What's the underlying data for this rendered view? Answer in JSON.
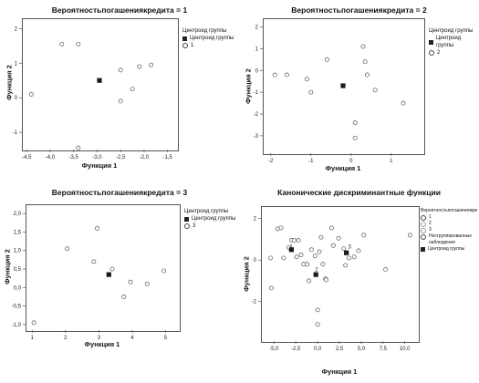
{
  "chart_data": [
    {
      "type": "scatter",
      "title": "Вероятностьпогашениякредита = 1",
      "xlabel": "Функция 1",
      "ylabel": "Функция 2",
      "xlim": [
        -4.6,
        -1.3
      ],
      "ylim": [
        -1.5,
        2.3
      ],
      "xticks": [
        -4.5,
        -4.0,
        -3.5,
        -3.0,
        -2.5,
        -2.0,
        -1.5
      ],
      "xtick_labels": [
        "-4,5",
        "-4,0",
        "-3,5",
        "-3,0",
        "-2,5",
        "-2,0",
        "-1,5"
      ],
      "yticks": [
        -1,
        0,
        1,
        2
      ],
      "ytick_labels": [
        "-1",
        "0",
        "1",
        "2"
      ],
      "legend": {
        "title": "Центроид группы",
        "entries": [
          {
            "label": "Центроид группы",
            "marker": "square"
          },
          {
            "label": "1",
            "marker": "circle"
          }
        ]
      },
      "series": [
        {
          "marker": "circle",
          "points": [
            [
              -4.4,
              0.1
            ],
            [
              -3.75,
              1.55
            ],
            [
              -3.4,
              1.55
            ],
            [
              -3.4,
              -1.45
            ],
            [
              -2.5,
              0.8
            ],
            [
              -2.5,
              -0.1
            ],
            [
              -2.25,
              0.25
            ],
            [
              -2.1,
              0.9
            ],
            [
              -1.85,
              0.95
            ]
          ]
        },
        {
          "name": "Центроид группы",
          "marker": "square",
          "points": [
            [
              -2.95,
              0.5
            ]
          ]
        }
      ]
    },
    {
      "type": "scatter",
      "title": "Вероятностьпогашениякредита = 2",
      "xlabel": "Функция 1",
      "ylabel": "Функция 2",
      "xlim": [
        -2.2,
        1.8
      ],
      "ylim": [
        -3.8,
        2.4
      ],
      "xticks": [
        -2,
        -1,
        0,
        1
      ],
      "xtick_labels": [
        "-2",
        "-1",
        "0",
        "1"
      ],
      "yticks": [
        -3,
        -2,
        -1,
        0,
        1,
        2
      ],
      "ytick_labels": [
        "-3",
        "-2",
        "-1",
        "0",
        "1",
        "2"
      ],
      "legend": {
        "title": "Центроид группы",
        "entries": [
          {
            "label": "Центроид группы",
            "marker": "square"
          },
          {
            "label": "2",
            "marker": "circle"
          }
        ]
      },
      "series": [
        {
          "marker": "circle",
          "points": [
            [
              -1.9,
              -0.2
            ],
            [
              -1.6,
              -0.2
            ],
            [
              -1.1,
              -0.4
            ],
            [
              -1.0,
              -1.0
            ],
            [
              -0.6,
              0.5
            ],
            [
              0.1,
              -2.4
            ],
            [
              0.1,
              -3.1
            ],
            [
              0.3,
              1.1
            ],
            [
              0.35,
              0.4
            ],
            [
              0.4,
              -0.2
            ],
            [
              0.6,
              -0.9
            ],
            [
              1.3,
              -1.5
            ]
          ]
        },
        {
          "name": "Центроид группы",
          "marker": "square",
          "points": [
            [
              -0.2,
              -0.7
            ]
          ]
        }
      ]
    },
    {
      "type": "scatter",
      "title": "Вероятностьпогашениякредита = 3",
      "xlabel": "Функция 1",
      "ylabel": "Функция 2",
      "xlim": [
        0.8,
        5.4
      ],
      "ylim": [
        -1.15,
        2.25
      ],
      "xticks": [
        1,
        2,
        3,
        4,
        5
      ],
      "xtick_labels": [
        "1",
        "2",
        "3",
        "4",
        "5"
      ],
      "yticks": [
        -1.0,
        -0.5,
        0.0,
        0.5,
        1.0,
        1.5,
        2.0
      ],
      "ytick_labels": [
        "-1,0",
        "-0,5",
        "0,0",
        "0,5",
        "1,0",
        "1,5",
        "2,0"
      ],
      "legend": {
        "title": "Центроид группы",
        "entries": [
          {
            "label": "Центроид группы",
            "marker": "square"
          },
          {
            "label": "3",
            "marker": "circle"
          }
        ]
      },
      "series": [
        {
          "marker": "circle",
          "points": [
            [
              1.05,
              -0.95
            ],
            [
              2.05,
              1.05
            ],
            [
              2.85,
              0.7
            ],
            [
              2.95,
              1.6
            ],
            [
              3.4,
              0.5
            ],
            [
              3.75,
              -0.25
            ],
            [
              3.95,
              0.15
            ],
            [
              4.45,
              0.1
            ],
            [
              4.95,
              0.45
            ]
          ]
        },
        {
          "name": "Центроид группы",
          "marker": "square",
          "points": [
            [
              3.3,
              0.35
            ]
          ]
        }
      ]
    },
    {
      "type": "scatter",
      "title": "Канонические дискриминантные функции",
      "xlabel": "Функция 1",
      "ylabel": "Функция 2",
      "xlim": [
        -6.5,
        11.5
      ],
      "ylim": [
        -3.9,
        2.6
      ],
      "xticks": [
        -5.0,
        -2.5,
        0.0,
        2.5,
        5.0,
        7.5,
        10.0
      ],
      "xtick_labels": [
        "-5,0",
        "-2,5",
        "0,0",
        "2,5",
        "5,0",
        "7,5",
        "10,0"
      ],
      "yticks": [
        -2,
        0,
        2
      ],
      "ytick_labels": [
        "-2",
        "0",
        "2"
      ],
      "legend": {
        "title": "Вероятностьпогашениякредита",
        "entries": [
          {
            "label": "1",
            "marker": "circle"
          },
          {
            "label": "2",
            "marker": "circle"
          },
          {
            "label": "3",
            "marker": "circle"
          },
          {
            "label": "Несгруппированные наблюдения",
            "marker": "circle"
          },
          {
            "label": "Центроид группы",
            "marker": "square"
          }
        ]
      },
      "centroid_labels": [
        {
          "text": "1",
          "x": -3.2,
          "y": 0.55
        },
        {
          "text": "2",
          "x": -0.3,
          "y": -0.55
        },
        {
          "text": "3",
          "x": 3.5,
          "y": 0.55
        }
      ],
      "series": [
        {
          "marker": "circle",
          "points": [
            [
              -4.6,
              1.5
            ],
            [
              -4.2,
              1.55
            ],
            [
              -3.9,
              0.1
            ],
            [
              -3.3,
              0.6
            ],
            [
              -3.0,
              0.95
            ],
            [
              -2.7,
              0.95
            ],
            [
              -2.4,
              0.15
            ],
            [
              -2.2,
              0.95
            ],
            [
              -1.9,
              0.25
            ],
            [
              -1.6,
              -0.2
            ],
            [
              -1.2,
              -0.2
            ],
            [
              -1.0,
              -1.0
            ],
            [
              -0.7,
              0.5
            ],
            [
              -0.3,
              0.2
            ],
            [
              0.0,
              -2.4
            ],
            [
              0.0,
              -3.1
            ],
            [
              0.2,
              0.4
            ],
            [
              0.4,
              1.1
            ],
            [
              0.6,
              -0.2
            ],
            [
              0.9,
              -0.9
            ],
            [
              1.0,
              -0.95
            ],
            [
              1.6,
              1.55
            ],
            [
              1.8,
              0.7
            ],
            [
              2.4,
              1.05
            ],
            [
              3.0,
              0.55
            ],
            [
              3.2,
              -0.25
            ],
            [
              3.6,
              0.1
            ],
            [
              4.2,
              0.15
            ],
            [
              4.7,
              0.45
            ],
            [
              5.3,
              1.2
            ],
            [
              7.8,
              -0.45
            ],
            [
              10.6,
              1.2
            ],
            [
              -5.3,
              -1.35
            ],
            [
              -5.4,
              0.1
            ]
          ]
        },
        {
          "name": "Центроид группы",
          "marker": "square",
          "points": [
            [
              -3.0,
              0.5
            ],
            [
              -0.2,
              -0.7
            ],
            [
              3.3,
              0.35
            ]
          ]
        }
      ]
    }
  ]
}
